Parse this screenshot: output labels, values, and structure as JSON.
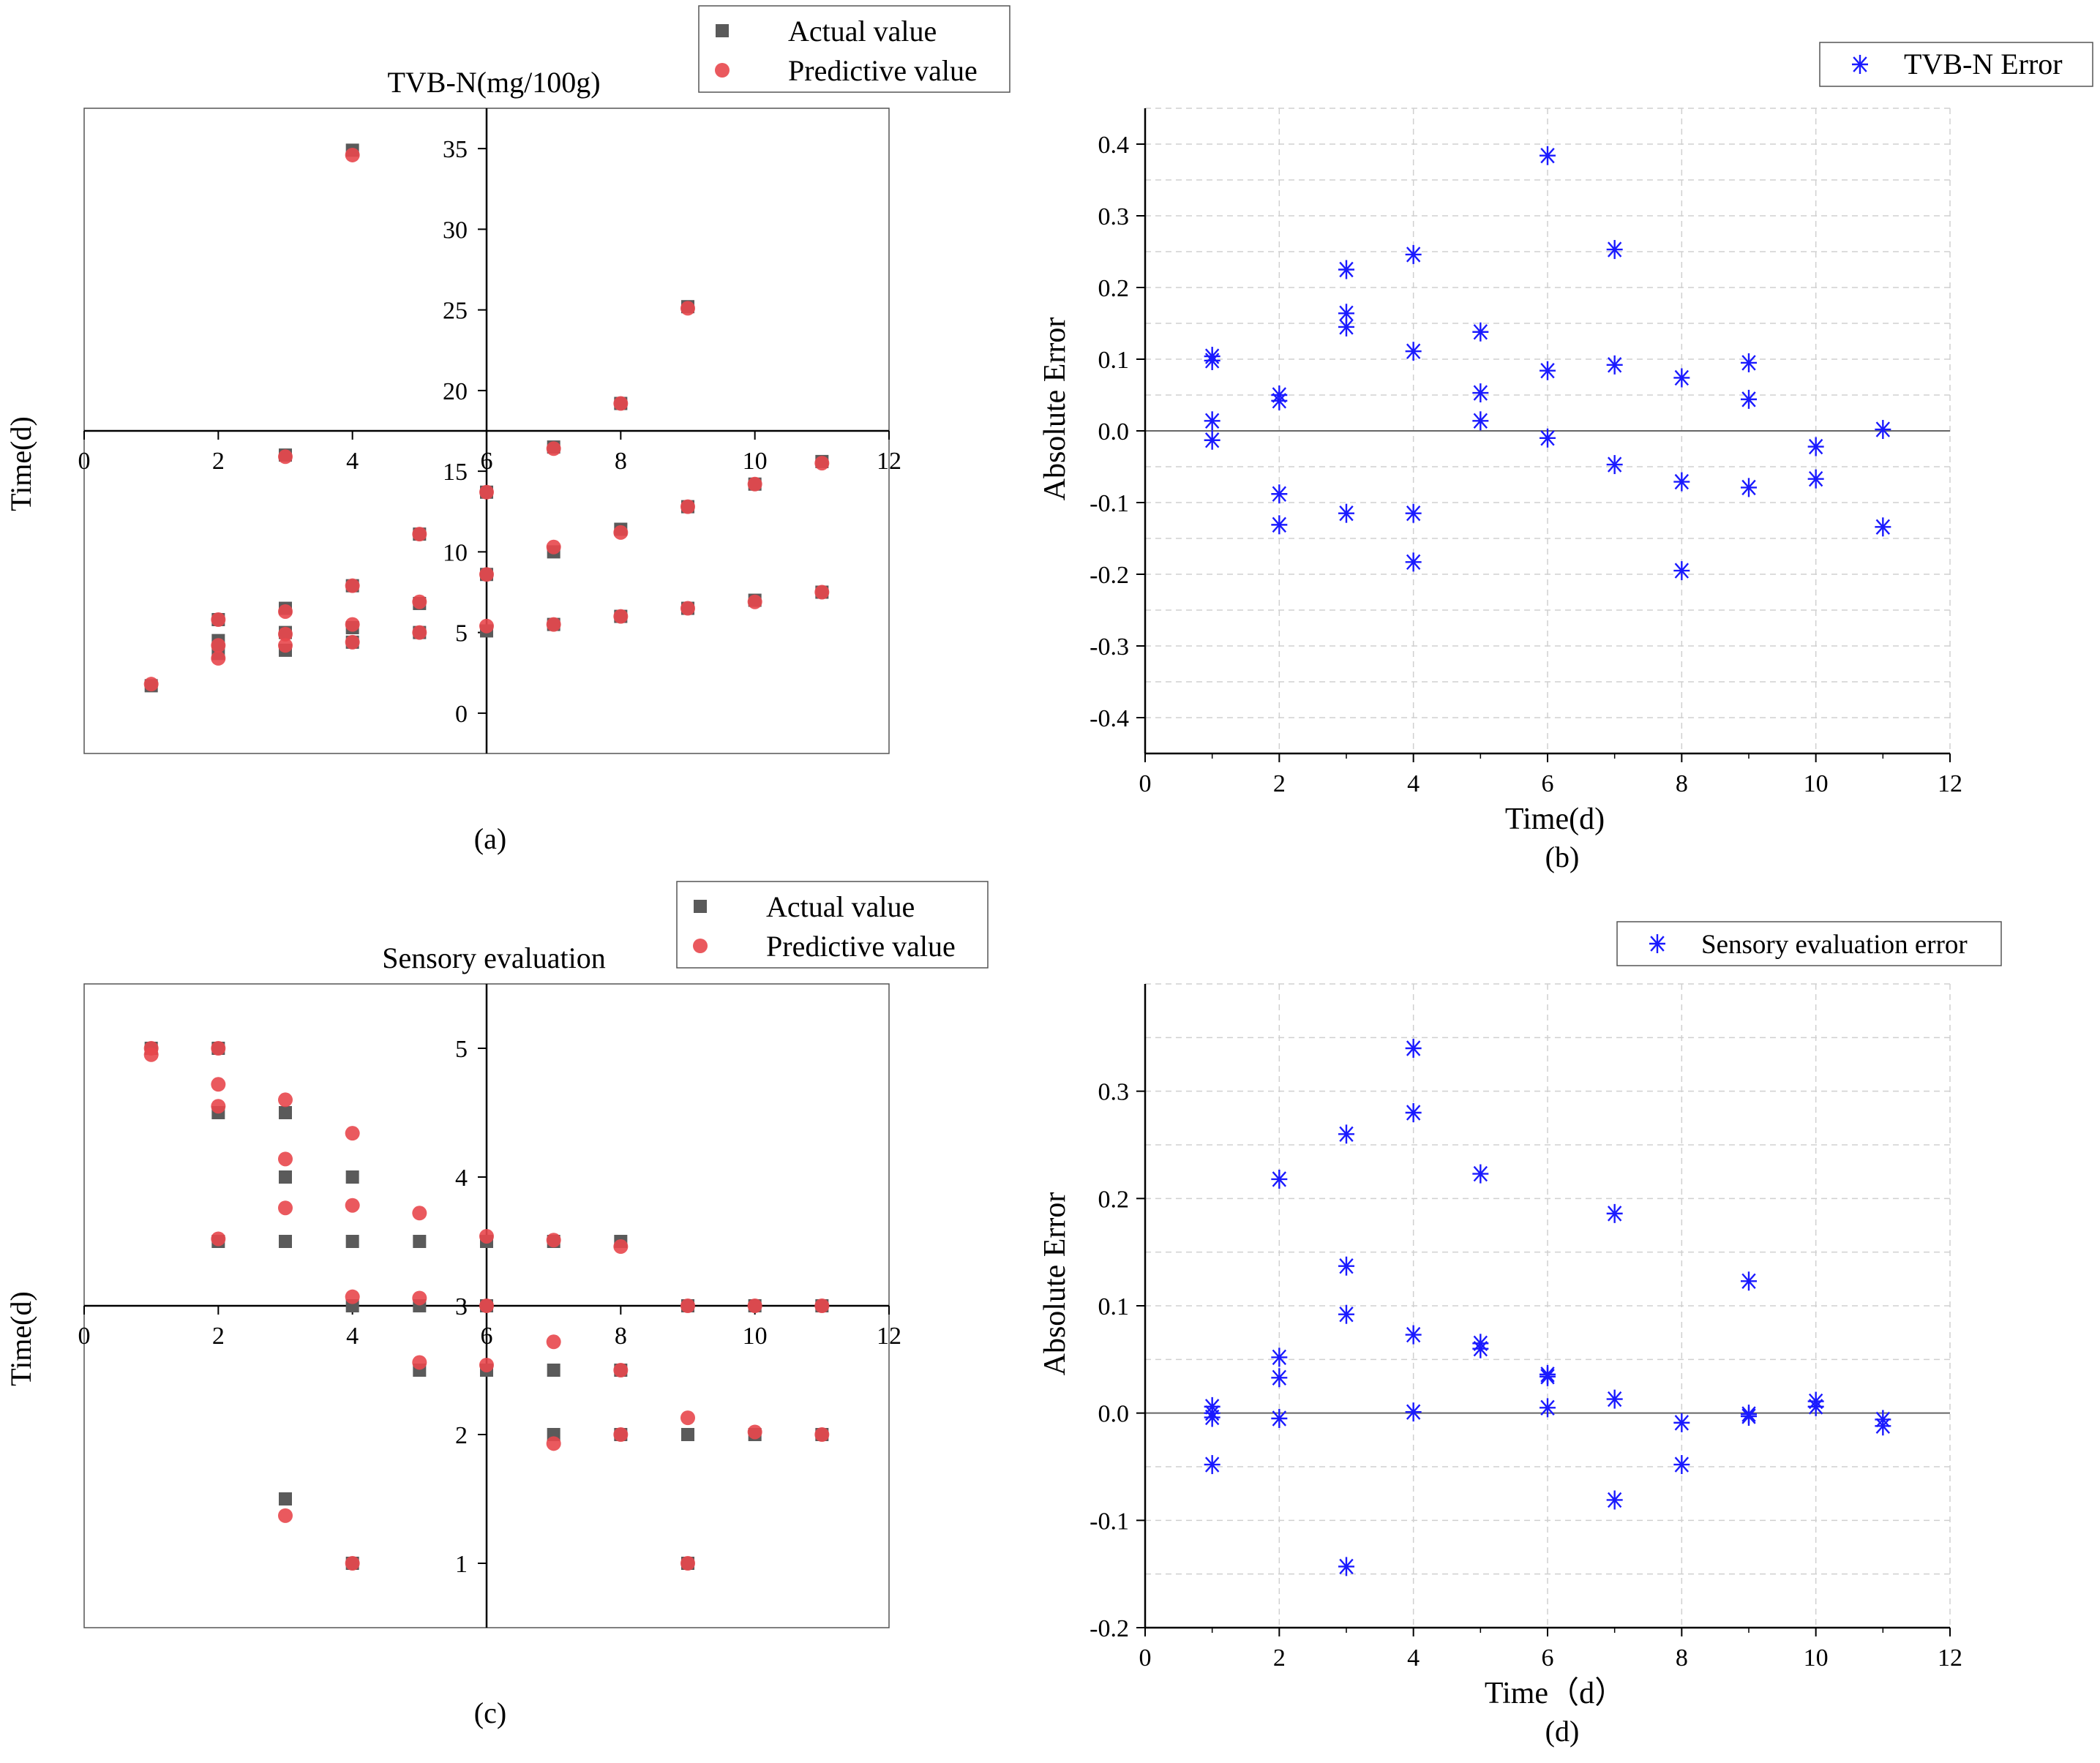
{
  "colors": {
    "actual": "#5a5a5a",
    "predictive": "#e8474c",
    "error": "#1a1aff",
    "axis": "#000000",
    "grid": "#d0d0d0"
  },
  "chart_data": [
    {
      "id": "a",
      "type": "scatter",
      "title": "TVB-N(mg/100g)",
      "ylabel": "Time(d)",
      "xlabel": "",
      "panel_label": "(a)",
      "xlim": [
        0,
        12
      ],
      "ylim": [
        -2.5,
        37.5
      ],
      "x_ticks": [
        "0",
        "2",
        "4",
        "6",
        "8",
        "10",
        "12"
      ],
      "y_ticks": [
        "0",
        "5",
        "10",
        "15",
        "20",
        "25",
        "30",
        "35"
      ],
      "legend": [
        "Actual value",
        "Predictive value"
      ],
      "series": [
        {
          "name": "Actual value",
          "points": [
            [
              1,
              1.7
            ],
            [
              2,
              5.8
            ],
            [
              2,
              4.5
            ],
            [
              2,
              3.7
            ],
            [
              3,
              16
            ],
            [
              3,
              6.5
            ],
            [
              3,
              5
            ],
            [
              3,
              3.9
            ],
            [
              4,
              34.9
            ],
            [
              4,
              7.9
            ],
            [
              4,
              5.3
            ],
            [
              4,
              4.4
            ],
            [
              5,
              11.1
            ],
            [
              5,
              6.8
            ],
            [
              5,
              5
            ],
            [
              6,
              13.7
            ],
            [
              6,
              8.6
            ],
            [
              6,
              5.1
            ],
            [
              7,
              16.5
            ],
            [
              7,
              10
            ],
            [
              7,
              5.5
            ],
            [
              8,
              19.2
            ],
            [
              8,
              11.4
            ],
            [
              8,
              6
            ],
            [
              9,
              25.2
            ],
            [
              9,
              12.8
            ],
            [
              9,
              6.5
            ],
            [
              10,
              14.2
            ],
            [
              10,
              7
            ],
            [
              11,
              15.6
            ],
            [
              11,
              7.5
            ]
          ]
        },
        {
          "name": "Predictive value",
          "points": [
            [
              1,
              1.8
            ],
            [
              2,
              5.8
            ],
            [
              2,
              4.2
            ],
            [
              2,
              3.4
            ],
            [
              3,
              15.9
            ],
            [
              3,
              6.3
            ],
            [
              3,
              4.9
            ],
            [
              3,
              4.2
            ],
            [
              4,
              34.6
            ],
            [
              4,
              7.9
            ],
            [
              4,
              5.5
            ],
            [
              4,
              4.4
            ],
            [
              5,
              11.1
            ],
            [
              5,
              6.9
            ],
            [
              5,
              5
            ],
            [
              6,
              13.7
            ],
            [
              6,
              8.6
            ],
            [
              6,
              5.4
            ],
            [
              7,
              16.4
            ],
            [
              7,
              10.3
            ],
            [
              7,
              5.5
            ],
            [
              8,
              19.2
            ],
            [
              8,
              11.2
            ],
            [
              8,
              6
            ],
            [
              9,
              25.1
            ],
            [
              9,
              12.8
            ],
            [
              9,
              6.5
            ],
            [
              10,
              14.2
            ],
            [
              10,
              6.9
            ],
            [
              11,
              15.5
            ],
            [
              11,
              7.5
            ]
          ]
        }
      ]
    },
    {
      "id": "b",
      "type": "scatter",
      "title": "",
      "xlabel": "Time(d)",
      "ylabel": "Absolute Error",
      "panel_label": "(b)",
      "xlim": [
        0,
        12
      ],
      "ylim": [
        -0.45,
        0.45
      ],
      "x_ticks": [
        "0",
        "2",
        "4",
        "6",
        "8",
        "10",
        "12"
      ],
      "y_ticks": [
        "-0.4",
        "-0.3",
        "-0.2",
        "-0.1",
        "0.0",
        "0.1",
        "0.2",
        "0.3",
        "0.4"
      ],
      "legend": [
        "TVB-N Error"
      ],
      "series": [
        {
          "name": "TVB-N Error",
          "points": [
            [
              1,
              0.104
            ],
            [
              1,
              0.098
            ],
            [
              1,
              0.014
            ],
            [
              1,
              -0.013
            ],
            [
              2,
              0.05
            ],
            [
              2,
              0.042
            ],
            [
              2,
              -0.088
            ],
            [
              2,
              -0.131
            ],
            [
              3,
              0.225
            ],
            [
              3,
              0.164
            ],
            [
              3,
              0.145
            ],
            [
              3,
              -0.115
            ],
            [
              4,
              0.246
            ],
            [
              4,
              0.111
            ],
            [
              4,
              -0.115
            ],
            [
              4,
              -0.183
            ],
            [
              5,
              0.138
            ],
            [
              5,
              0.053
            ],
            [
              5,
              0.014
            ],
            [
              6,
              0.384
            ],
            [
              6,
              0.084
            ],
            [
              6,
              -0.01
            ],
            [
              7,
              0.253
            ],
            [
              7,
              0.092
            ],
            [
              7,
              -0.047
            ],
            [
              8,
              0.074
            ],
            [
              8,
              -0.071
            ],
            [
              8,
              -0.195
            ],
            [
              9,
              0.095
            ],
            [
              9,
              0.044
            ],
            [
              9,
              -0.079
            ],
            [
              10,
              -0.022
            ],
            [
              10,
              -0.067
            ],
            [
              11,
              0.002
            ],
            [
              11,
              -0.134
            ]
          ]
        }
      ]
    },
    {
      "id": "c",
      "type": "scatter",
      "title": "Sensory evaluation",
      "ylabel": "Time(d)",
      "xlabel": "",
      "panel_label": "(c)",
      "xlim": [
        0,
        12
      ],
      "ylim": [
        0.5,
        5.5
      ],
      "x_ticks": [
        "0",
        "2",
        "4",
        "6",
        "8",
        "10",
        "12"
      ],
      "y_ticks": [
        "1",
        "2",
        "3",
        "4",
        "5"
      ],
      "legend": [
        "Actual value",
        "Predictive value"
      ],
      "series": [
        {
          "name": "Actual value",
          "points": [
            [
              1,
              5
            ],
            [
              2,
              5
            ],
            [
              2,
              4.5
            ],
            [
              2,
              3.5
            ],
            [
              3,
              4.5
            ],
            [
              3,
              4
            ],
            [
              3,
              3.5
            ],
            [
              3,
              1.5
            ],
            [
              4,
              4
            ],
            [
              4,
              3.5
            ],
            [
              4,
              3
            ],
            [
              4,
              1
            ],
            [
              5,
              3.5
            ],
            [
              5,
              3
            ],
            [
              5,
              2.5
            ],
            [
              6,
              3.5
            ],
            [
              6,
              3
            ],
            [
              6,
              2.5
            ],
            [
              7,
              3.5
            ],
            [
              7,
              2.5
            ],
            [
              7,
              2
            ],
            [
              8,
              3.5
            ],
            [
              8,
              2.5
            ],
            [
              8,
              2
            ],
            [
              9,
              3
            ],
            [
              9,
              2
            ],
            [
              9,
              1
            ],
            [
              10,
              3
            ],
            [
              10,
              2
            ],
            [
              11,
              3
            ],
            [
              11,
              2
            ]
          ]
        },
        {
          "name": "Predictive value",
          "points": [
            [
              1,
              5
            ],
            [
              1,
              4.95
            ],
            [
              2,
              5
            ],
            [
              2,
              4.72
            ],
            [
              2,
              4.55
            ],
            [
              2,
              3.52
            ],
            [
              3,
              4.6
            ],
            [
              3,
              4.14
            ],
            [
              3,
              3.76
            ],
            [
              3,
              1.37
            ],
            [
              4,
              4.34
            ],
            [
              4,
              3.78
            ],
            [
              4,
              3.07
            ],
            [
              4,
              1
            ],
            [
              5,
              3.72
            ],
            [
              5,
              3.06
            ],
            [
              5,
              2.56
            ],
            [
              6,
              3.54
            ],
            [
              6,
              3
            ],
            [
              6,
              2.54
            ],
            [
              7,
              3.51
            ],
            [
              7,
              2.72
            ],
            [
              7,
              1.93
            ],
            [
              8,
              3.46
            ],
            [
              8,
              2.5
            ],
            [
              8,
              2
            ],
            [
              9,
              3
            ],
            [
              9,
              2.13
            ],
            [
              9,
              1
            ],
            [
              10,
              3
            ],
            [
              10,
              2.02
            ],
            [
              11,
              3
            ],
            [
              11,
              2
            ]
          ]
        }
      ]
    },
    {
      "id": "d",
      "type": "scatter",
      "title": "",
      "xlabel": "Time（d）",
      "ylabel": "Absolute Error",
      "panel_label": "(d)",
      "xlim": [
        0,
        12
      ],
      "ylim": [
        -0.2,
        0.4
      ],
      "x_ticks": [
        "0",
        "2",
        "4",
        "6",
        "8",
        "10",
        "12"
      ],
      "y_ticks": [
        "-0.2",
        "-0.1",
        "0.0",
        "0.1",
        "0.2",
        "0.3"
      ],
      "legend": [
        "Sensory evaluation error"
      ],
      "series": [
        {
          "name": "Sensory evaluation error",
          "points": [
            [
              1,
              0.006
            ],
            [
              1,
              0
            ],
            [
              1,
              -0.004
            ],
            [
              1,
              -0.048
            ],
            [
              2,
              0.218
            ],
            [
              2,
              0.052
            ],
            [
              2,
              0.033
            ],
            [
              2,
              -0.005
            ],
            [
              3,
              0.26
            ],
            [
              3,
              0.137
            ],
            [
              3,
              0.092
            ],
            [
              3,
              -0.143
            ],
            [
              4,
              0.34
            ],
            [
              4,
              0.28
            ],
            [
              4,
              0.073
            ],
            [
              4,
              0.001
            ],
            [
              5,
              0.223
            ],
            [
              5,
              0.065
            ],
            [
              5,
              0.06
            ],
            [
              6,
              0.036
            ],
            [
              6,
              0.034
            ],
            [
              6,
              0.005
            ],
            [
              7,
              0.186
            ],
            [
              7,
              0.013
            ],
            [
              7,
              -0.081
            ],
            [
              8,
              -0.009
            ],
            [
              8,
              -0.048
            ],
            [
              9,
              0.123
            ],
            [
              9,
              -0.001
            ],
            [
              9,
              -0.003
            ],
            [
              10,
              0.011
            ],
            [
              10,
              0.006
            ],
            [
              11,
              -0.006
            ],
            [
              11,
              -0.012
            ]
          ]
        }
      ]
    }
  ]
}
